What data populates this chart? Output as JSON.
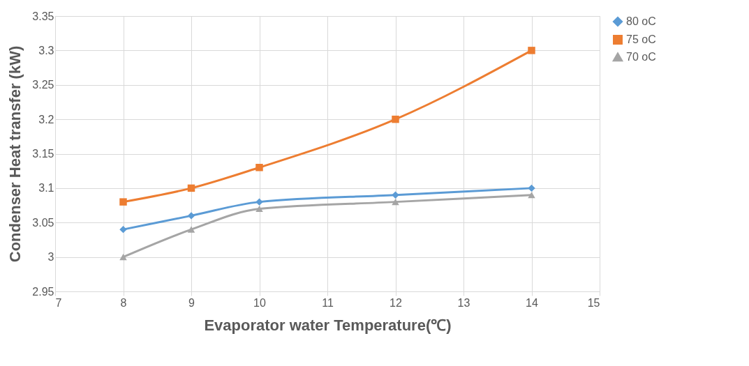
{
  "chart_data": {
    "type": "line",
    "xlabel": "Evaporator water Temperature(℃)",
    "ylabel": "Condenser  Heat transfer (kW)",
    "x": [
      8,
      9,
      10,
      12,
      14
    ],
    "series": [
      {
        "name": "80 oC",
        "color": "#5b9bd5",
        "marker": "diamond",
        "values": [
          3.04,
          3.06,
          3.08,
          3.09,
          3.1
        ]
      },
      {
        "name": "75 oC",
        "color": "#ed7d31",
        "marker": "square",
        "values": [
          3.08,
          3.1,
          3.13,
          3.2,
          3.3
        ]
      },
      {
        "name": "70 oC",
        "color": "#a5a5a5",
        "marker": "triangle",
        "values": [
          3.0,
          3.04,
          3.07,
          3.08,
          3.09
        ]
      }
    ],
    "xlim": [
      7,
      15
    ],
    "xticks": [
      7,
      8,
      9,
      10,
      11,
      12,
      13,
      14,
      15
    ],
    "ylim": [
      2.95,
      3.35
    ],
    "yticks": [
      2.95,
      3,
      3.05,
      3.1,
      3.15,
      3.2,
      3.25,
      3.3,
      3.35
    ],
    "grid": true,
    "legend": "top right",
    "line_style": "solid"
  }
}
